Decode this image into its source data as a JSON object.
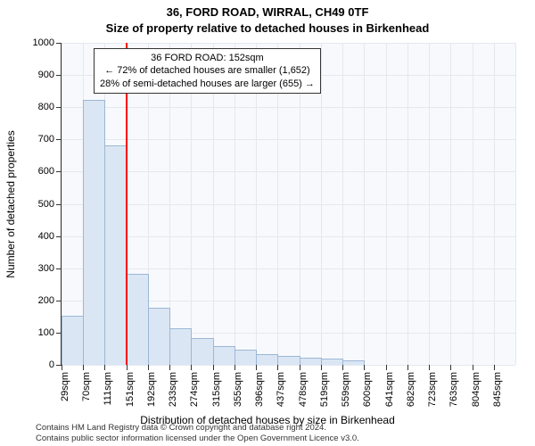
{
  "heading_line1": "36, FORD ROAD, WIRRAL, CH49 0TF",
  "heading_line2": "Size of property relative to detached houses in Birkenhead",
  "y_axis_title": "Number of detached properties",
  "x_axis_title": "Distribution of detached houses by size in Birkenhead",
  "footnote_line1": "Contains HM Land Registry data © Crown copyright and database right 2024.",
  "footnote_line2": "Contains public sector information licensed under the Open Government Licence v3.0.",
  "chart": {
    "type": "histogram",
    "plot_bg": "#f7f9fc",
    "grid_color": "#e4e8ef",
    "bar_fill": "#dbe6f4",
    "bar_stroke": "#9db7d6",
    "ref_line_color": "#ff0000",
    "axis_color": "#333333",
    "font_color": "#000000",
    "tick_fontsize": 11,
    "ylim": [
      0,
      1000
    ],
    "ytick_step": 100,
    "x_labels": [
      "29sqm",
      "70sqm",
      "111sqm",
      "151sqm",
      "192sqm",
      "233sqm",
      "274sqm",
      "315sqm",
      "355sqm",
      "396sqm",
      "437sqm",
      "478sqm",
      "519sqm",
      "559sqm",
      "600sqm",
      "641sqm",
      "682sqm",
      "723sqm",
      "763sqm",
      "804sqm",
      "845sqm"
    ],
    "bar_heights": [
      150,
      820,
      680,
      280,
      175,
      110,
      80,
      55,
      45,
      30,
      25,
      20,
      18,
      10,
      0,
      0,
      0,
      0,
      0,
      0,
      0
    ],
    "ref_line_bin_boundary": 3,
    "annotation": {
      "line1": "36 FORD ROAD: 152sqm",
      "line2": "← 72% of detached houses are smaller (1,652)",
      "line3": "28% of semi-detached houses are larger (655) →"
    }
  }
}
